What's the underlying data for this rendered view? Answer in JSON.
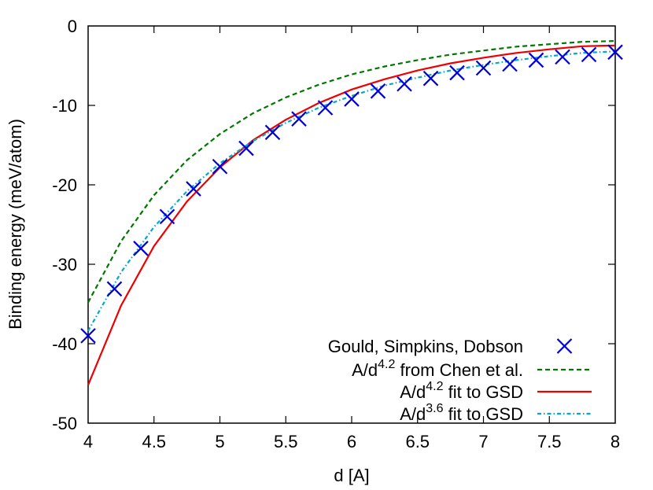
{
  "chart_data": {
    "type": "line",
    "xlabel": "d [A]",
    "ylabel": "Binding energy (meV/atom)",
    "xlim": [
      4,
      8
    ],
    "ylim": [
      -50,
      0
    ],
    "xticks": [
      4,
      4.5,
      5,
      5.5,
      6,
      6.5,
      7,
      7.5,
      8
    ],
    "xtick_labels": [
      "4",
      "4.5",
      "5",
      "5.5",
      "6",
      "6.5",
      "7",
      "7.5",
      "8"
    ],
    "yticks": [
      0,
      -10,
      -20,
      -30,
      -40,
      -50
    ],
    "ytick_labels": [
      "0",
      "-10",
      "-20",
      "-30",
      "-40",
      "-50"
    ],
    "grid": false,
    "legend_position": "bottom-right",
    "series": [
      {
        "name": "Gould, Simpkins, Dobson",
        "kind": "markers",
        "marker": "x",
        "color": "#0000dd",
        "x": [
          4.0,
          4.2,
          4.4,
          4.6,
          4.8,
          5.0,
          5.2,
          5.4,
          5.6,
          5.8,
          6.0,
          6.2,
          6.4,
          6.6,
          6.8,
          7.0,
          7.2,
          7.4,
          7.6,
          7.8,
          8.0
        ],
        "y": [
          -39.0,
          -33.1,
          -28.0,
          -24.0,
          -20.5,
          -17.7,
          -15.4,
          -13.4,
          -11.7,
          -10.3,
          -9.2,
          -8.2,
          -7.3,
          -6.6,
          -5.9,
          -5.3,
          -4.8,
          -4.3,
          -3.9,
          -3.6,
          -3.3
        ]
      },
      {
        "name": "A/d<sup>4.2</sup> from Chen et al.",
        "name_parts": [
          "A/d",
          "4.2",
          " from Chen et al."
        ],
        "kind": "line",
        "dash": "6,4",
        "color": "#007700",
        "exponent": 4.2,
        "x": [
          4.0,
          4.25,
          4.5,
          4.75,
          5.0,
          5.25,
          5.5,
          5.75,
          6.0,
          6.25,
          6.5,
          6.75,
          7.0,
          7.25,
          7.5,
          7.75,
          8.0
        ],
        "y": [
          -34.8,
          -27.1,
          -21.3,
          -16.9,
          -13.6,
          -11.0,
          -9.0,
          -7.4,
          -6.1,
          -5.1,
          -4.3,
          -3.6,
          -3.1,
          -2.6,
          -2.3,
          -2.0,
          -1.89
        ]
      },
      {
        "name": "A/d<sup>4.2</sup> fit to GSD",
        "name_parts": [
          "A/d",
          "4.2",
          " fit to GSD"
        ],
        "kind": "line",
        "dash": "",
        "color": "#ee0000",
        "exponent": 4.2,
        "x": [
          4.0,
          4.25,
          4.5,
          4.75,
          5.0,
          5.25,
          5.5,
          5.75,
          6.0,
          6.25,
          6.5,
          6.75,
          7.0,
          7.25,
          7.5,
          7.75,
          8.0
        ],
        "y": [
          -45.2,
          -35.2,
          -27.7,
          -22.1,
          -17.8,
          -14.4,
          -11.8,
          -9.7,
          -8.0,
          -6.7,
          -5.6,
          -4.7,
          -4.0,
          -3.4,
          -2.94,
          -2.55,
          -2.46
        ]
      },
      {
        "name": "A/d<sup>3.6</sup> fit to GSD",
        "name_parts": [
          "A/d",
          "3.6",
          " fit to GSD"
        ],
        "kind": "line",
        "dash": "5,3,1.5,3",
        "color": "#00aacc",
        "exponent": 3.6,
        "x": [
          4.0,
          4.25,
          4.5,
          4.75,
          5.0,
          5.25,
          5.5,
          5.75,
          6.0,
          6.25,
          6.5,
          6.75,
          7.0,
          7.25,
          7.5,
          7.75,
          8.0
        ],
        "y": [
          -38.4,
          -31.0,
          -25.3,
          -20.8,
          -17.3,
          -14.5,
          -12.2,
          -10.3,
          -8.8,
          -7.5,
          -6.5,
          -5.6,
          -4.9,
          -4.3,
          -3.8,
          -3.4,
          -3.2
        ]
      }
    ]
  }
}
